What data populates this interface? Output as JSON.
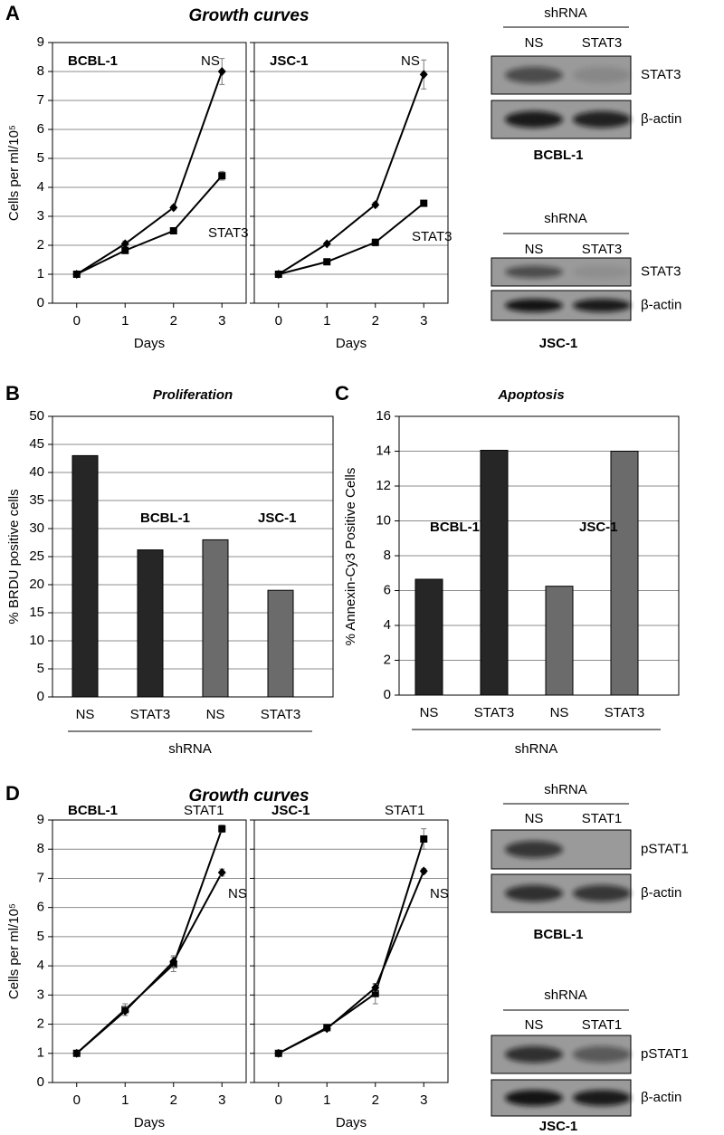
{
  "figure": {
    "panels": [
      {
        "label": "A",
        "title": "Growth curves"
      },
      {
        "label": "B"
      },
      {
        "label": "C"
      },
      {
        "label": "D",
        "title": "Growth curves"
      }
    ]
  },
  "chart_data": [
    {
      "type": "line",
      "annotation": "BCBL-1",
      "y_label": "Cells per ml/10⁵",
      "x_label": "Days",
      "x": [
        0,
        1,
        2,
        3
      ],
      "xlim": [
        -0.5,
        3.5
      ],
      "xticks": [
        0,
        1,
        2,
        3
      ],
      "ylim": [
        0,
        9
      ],
      "yticks": [
        0,
        1,
        2,
        3,
        4,
        5,
        6,
        7,
        8,
        9
      ],
      "grid": true,
      "series": [
        {
          "name": "NS",
          "color": "#000000",
          "marker": "diamond",
          "values": [
            1,
            2.05,
            3.3,
            8.0
          ],
          "errors": [
            0.05,
            0.1,
            0.08,
            0.45
          ]
        },
        {
          "name": "STAT3",
          "color": "#000000",
          "marker": "square",
          "values": [
            1,
            1.82,
            2.5,
            4.4
          ],
          "errors": [
            0.05,
            0.1,
            0.08,
            0.15
          ]
        }
      ]
    },
    {
      "type": "line",
      "annotation": "JSC-1",
      "x_label": "Days",
      "x": [
        0,
        1,
        2,
        3
      ],
      "xlim": [
        -0.5,
        3.5
      ],
      "xticks": [
        0,
        1,
        2,
        3
      ],
      "ylim": [
        0,
        9
      ],
      "yticks": [
        0,
        1,
        2,
        3,
        4,
        5,
        6,
        7,
        8,
        9
      ],
      "grid": true,
      "series": [
        {
          "name": "NS",
          "color": "#000000",
          "marker": "diamond",
          "values": [
            1,
            2.05,
            3.4,
            7.9
          ],
          "errors": [
            0.05,
            0.05,
            0.08,
            0.5
          ]
        },
        {
          "name": "STAT3",
          "color": "#000000",
          "marker": "square",
          "values": [
            1,
            1.43,
            2.1,
            3.45
          ],
          "errors": [
            0.05,
            0.05,
            0.12,
            0.08
          ]
        }
      ]
    },
    {
      "type": "bar",
      "title": "Proliferation",
      "y_label": "% BRDU positive cells",
      "group_label": "shRNA",
      "categories": [
        "NS",
        "STAT3",
        "NS",
        "STAT3"
      ],
      "values": [
        43,
        26.2,
        28,
        19
      ],
      "colors": [
        "#262626",
        "#262626",
        "#6b6b6b",
        "#6b6b6b"
      ],
      "ylim": [
        0,
        50
      ],
      "yticks": [
        0,
        5,
        10,
        15,
        20,
        25,
        30,
        35,
        40,
        45,
        50
      ],
      "grid": true,
      "annotations": [
        {
          "text": "BCBL-1",
          "color": "#000000"
        },
        {
          "text": "JSC-1",
          "color": "#6b6b6b"
        }
      ]
    },
    {
      "type": "bar",
      "title": "Apoptosis",
      "y_label": "% Annexin-Cy3 Positive Cells",
      "group_label": "shRNA",
      "categories": [
        "NS",
        "STAT3",
        "NS",
        "STAT3"
      ],
      "values": [
        6.65,
        14.05,
        6.25,
        14.0
      ],
      "colors": [
        "#262626",
        "#262626",
        "#6b6b6b",
        "#6b6b6b"
      ],
      "ylim": [
        0,
        16
      ],
      "yticks": [
        0,
        2,
        4,
        6,
        8,
        10,
        12,
        14,
        16
      ],
      "grid": true,
      "annotations": [
        {
          "text": "BCBL-1",
          "color": "#000000"
        },
        {
          "text": "JSC-1",
          "color": "#6b6b6b"
        }
      ]
    },
    {
      "type": "line",
      "annotation": "BCBL-1",
      "y_label": "Cells per ml/10⁵",
      "x_label": "Days",
      "x": [
        0,
        1,
        2,
        3
      ],
      "xlim": [
        -0.5,
        3.5
      ],
      "xticks": [
        0,
        1,
        2,
        3
      ],
      "ylim": [
        0,
        9
      ],
      "yticks": [
        0,
        1,
        2,
        3,
        4,
        5,
        6,
        7,
        8,
        9
      ],
      "grid": true,
      "series": [
        {
          "name": "STAT1",
          "color": "#000000",
          "marker": "square",
          "values": [
            1,
            2.5,
            4.05,
            8.7
          ],
          "errors": [
            0.05,
            0.2,
            0.25,
            0.12
          ]
        },
        {
          "name": "NS",
          "color": "#000000",
          "marker": "diamond",
          "values": [
            1,
            2.45,
            4.15,
            7.2
          ],
          "errors": [
            0.05,
            0.15,
            0.2,
            0.12
          ]
        }
      ]
    },
    {
      "type": "line",
      "annotation": "JSC-1",
      "x_label": "Days",
      "x": [
        0,
        1,
        2,
        3
      ],
      "xlim": [
        -0.5,
        3.5
      ],
      "xticks": [
        0,
        1,
        2,
        3
      ],
      "ylim": [
        0,
        9
      ],
      "yticks": [
        0,
        1,
        2,
        3,
        4,
        5,
        6,
        7,
        8,
        9
      ],
      "grid": true,
      "series": [
        {
          "name": "STAT1",
          "color": "#000000",
          "marker": "square",
          "values": [
            1,
            1.88,
            3.05,
            8.35
          ],
          "errors": [
            0.05,
            0.05,
            0.35,
            0.35
          ]
        },
        {
          "name": "NS",
          "color": "#000000",
          "marker": "diamond",
          "values": [
            1,
            1.85,
            3.25,
            7.25
          ],
          "errors": [
            0.05,
            0.05,
            0.12,
            0.08
          ]
        }
      ]
    }
  ],
  "blots": [
    {
      "header": "shRNA",
      "lanes": [
        "NS",
        "STAT3"
      ],
      "rows": [
        "STAT3",
        "β-actin"
      ],
      "cell_line": "BCBL-1"
    },
    {
      "header": "shRNA",
      "lanes": [
        "NS",
        "STAT3"
      ],
      "rows": [
        "STAT3",
        "β-actin"
      ],
      "cell_line": "JSC-1"
    },
    {
      "header": "shRNA",
      "lanes": [
        "NS",
        "STAT1"
      ],
      "rows": [
        "pSTAT1",
        "β-actin"
      ],
      "cell_line": "BCBL-1"
    },
    {
      "header": "shRNA",
      "lanes": [
        "NS",
        "STAT1"
      ],
      "rows": [
        "pSTAT1",
        "β-actin"
      ],
      "cell_line": "JSC-1"
    }
  ]
}
